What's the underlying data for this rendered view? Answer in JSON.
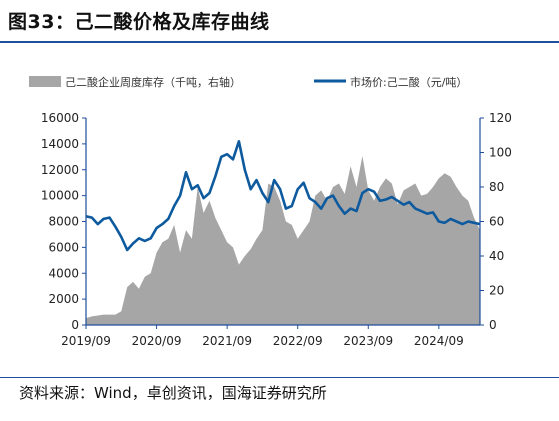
{
  "title": "图33：己二酸价格及库存曲线",
  "source": "资料来源：Wind，卓创资讯，国海证券研究所",
  "chart_data": {
    "type": "area+line",
    "legend": {
      "area_label": "己二酸企业周度库存（千吨，右轴）",
      "line_label": "市场价:己二酸（元/吨）",
      "placement": "top"
    },
    "x_axis": {
      "ticks": [
        "2019/09",
        "2020/09",
        "2021/09",
        "2022/09",
        "2023/09",
        "2024/09"
      ],
      "range": [
        "2019/09",
        "2025/04"
      ]
    },
    "y_left": {
      "ticks": [
        "0",
        "2000",
        "4000",
        "6000",
        "8000",
        "10000",
        "12000",
        "14000",
        "16000"
      ],
      "ylim": [
        0,
        16000
      ]
    },
    "y_right": {
      "ticks": [
        "0",
        "20",
        "40",
        "60",
        "80",
        "100",
        "120"
      ],
      "ylim": [
        0,
        120
      ]
    },
    "grid": false,
    "colors": {
      "area": "#a6a6a6",
      "line": "#0e5a9e",
      "axis": "#1f4e9a"
    },
    "series": [
      {
        "name": "己二酸企业周度库存（千吨，右轴）",
        "type": "area",
        "axis": "right",
        "points": [
          [
            "2019/09",
            4
          ],
          [
            "2019/10",
            5
          ],
          [
            "2019/12",
            6
          ],
          [
            "2020/02",
            6
          ],
          [
            "2020/03",
            8
          ],
          [
            "2020/04",
            22
          ],
          [
            "2020/05",
            25
          ],
          [
            "2020/06",
            21
          ],
          [
            "2020/07",
            28
          ],
          [
            "2020/08",
            30
          ],
          [
            "2020/09",
            42
          ],
          [
            "2020/10",
            48
          ],
          [
            "2020/11",
            50
          ],
          [
            "2020/12",
            58
          ],
          [
            "2021/01",
            42
          ],
          [
            "2021/02",
            55
          ],
          [
            "2021/03",
            50
          ],
          [
            "2021/04",
            80
          ],
          [
            "2021/05",
            65
          ],
          [
            "2021/06",
            72
          ],
          [
            "2021/07",
            62
          ],
          [
            "2021/08",
            55
          ],
          [
            "2021/09",
            48
          ],
          [
            "2021/10",
            45
          ],
          [
            "2021/11",
            35
          ],
          [
            "2021/12",
            40
          ],
          [
            "2022/01",
            44
          ],
          [
            "2022/02",
            50
          ],
          [
            "2022/03",
            55
          ],
          [
            "2022/04",
            82
          ],
          [
            "2022/05",
            80
          ],
          [
            "2022/06",
            72
          ],
          [
            "2022/07",
            60
          ],
          [
            "2022/08",
            58
          ],
          [
            "2022/09",
            50
          ],
          [
            "2022/10",
            55
          ],
          [
            "2022/11",
            60
          ],
          [
            "2022/12",
            75
          ],
          [
            "2023/01",
            78
          ],
          [
            "2023/02",
            72
          ],
          [
            "2023/03",
            80
          ],
          [
            "2023/04",
            82
          ],
          [
            "2023/05",
            76
          ],
          [
            "2023/06",
            92
          ],
          [
            "2023/07",
            80
          ],
          [
            "2023/08",
            98
          ],
          [
            "2023/09",
            78
          ],
          [
            "2023/10",
            72
          ],
          [
            "2023/11",
            80
          ],
          [
            "2023/12",
            85
          ],
          [
            "2024/01",
            82
          ],
          [
            "2024/02",
            70
          ],
          [
            "2024/03",
            78
          ],
          [
            "2024/04",
            80
          ],
          [
            "2024/05",
            82
          ],
          [
            "2024/06",
            75
          ],
          [
            "2024/07",
            76
          ],
          [
            "2024/08",
            80
          ],
          [
            "2024/09",
            85
          ],
          [
            "2024/10",
            88
          ],
          [
            "2024/11",
            86
          ],
          [
            "2024/12",
            80
          ],
          [
            "2025/01",
            75
          ],
          [
            "2025/02",
            72
          ],
          [
            "2025/03",
            62
          ],
          [
            "2025/04",
            55
          ]
        ]
      },
      {
        "name": "市场价:己二酸（元/吨）",
        "type": "line",
        "axis": "left",
        "points": [
          [
            "2019/09",
            8400
          ],
          [
            "2019/10",
            8300
          ],
          [
            "2019/11",
            7800
          ],
          [
            "2019/12",
            8200
          ],
          [
            "2020/01",
            8300
          ],
          [
            "2020/02",
            7600
          ],
          [
            "2020/03",
            6800
          ],
          [
            "2020/04",
            5800
          ],
          [
            "2020/05",
            6300
          ],
          [
            "2020/06",
            6700
          ],
          [
            "2020/07",
            6500
          ],
          [
            "2020/08",
            6700
          ],
          [
            "2020/09",
            7500
          ],
          [
            "2020/10",
            7800
          ],
          [
            "2020/11",
            8200
          ],
          [
            "2020/12",
            9200
          ],
          [
            "2021/01",
            10000
          ],
          [
            "2021/02",
            11800
          ],
          [
            "2021/03",
            10500
          ],
          [
            "2021/04",
            10800
          ],
          [
            "2021/05",
            9800
          ],
          [
            "2021/06",
            10200
          ],
          [
            "2021/07",
            11500
          ],
          [
            "2021/08",
            13000
          ],
          [
            "2021/09",
            13200
          ],
          [
            "2021/10",
            12800
          ],
          [
            "2021/11",
            14200
          ],
          [
            "2021/12",
            12000
          ],
          [
            "2022/01",
            10500
          ],
          [
            "2022/02",
            11200
          ],
          [
            "2022/03",
            10200
          ],
          [
            "2022/04",
            9500
          ],
          [
            "2022/05",
            11200
          ],
          [
            "2022/06",
            10500
          ],
          [
            "2022/07",
            9000
          ],
          [
            "2022/08",
            9200
          ],
          [
            "2022/09",
            10500
          ],
          [
            "2022/10",
            11000
          ],
          [
            "2022/11",
            9800
          ],
          [
            "2022/12",
            9500
          ],
          [
            "2023/01",
            9000
          ],
          [
            "2023/02",
            9800
          ],
          [
            "2023/03",
            10000
          ],
          [
            "2023/04",
            9200
          ],
          [
            "2023/05",
            8600
          ],
          [
            "2023/06",
            9000
          ],
          [
            "2023/07",
            8800
          ],
          [
            "2023/08",
            10200
          ],
          [
            "2023/09",
            10500
          ],
          [
            "2023/10",
            10300
          ],
          [
            "2023/11",
            9600
          ],
          [
            "2023/12",
            9700
          ],
          [
            "2024/01",
            9900
          ],
          [
            "2024/02",
            9600
          ],
          [
            "2024/03",
            9300
          ],
          [
            "2024/04",
            9500
          ],
          [
            "2024/05",
            9000
          ],
          [
            "2024/06",
            8800
          ],
          [
            "2024/07",
            8600
          ],
          [
            "2024/08",
            8700
          ],
          [
            "2024/09",
            8000
          ],
          [
            "2024/10",
            7900
          ],
          [
            "2024/11",
            8200
          ],
          [
            "2024/12",
            8000
          ],
          [
            "2025/01",
            7800
          ],
          [
            "2025/02",
            8000
          ],
          [
            "2025/03",
            7900
          ],
          [
            "2025/04",
            7800
          ]
        ]
      }
    ]
  }
}
